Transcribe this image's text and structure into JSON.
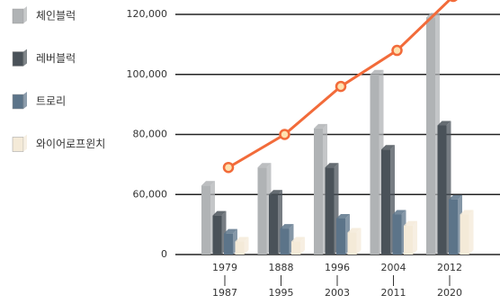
{
  "chart_data": {
    "type": "bar",
    "categories": [
      [
        "1979",
        "1987"
      ],
      [
        "1888",
        "1995"
      ],
      [
        "1996",
        "2003"
      ],
      [
        "2004",
        "2011"
      ],
      [
        "2012",
        "2020"
      ]
    ],
    "series": [
      {
        "name": "체인블럭",
        "color": "#b0b3b5",
        "values": [
          63000,
          69000,
          82000,
          100000,
          119000
        ]
      },
      {
        "name": "레버블럭",
        "color": "#4a5259",
        "values": [
          39000,
          60000,
          69000,
          75000,
          83000
        ]
      },
      {
        "name": "트로리",
        "color": "#5c7489",
        "values": [
          21000,
          26000,
          36000,
          40000,
          55000
        ]
      },
      {
        "name": "와이어로프윈치",
        "color": "#f4ead8",
        "values": [
          13000,
          13000,
          22000,
          29000,
          40000
        ]
      }
    ],
    "line": {
      "color": "#f26b3a",
      "values": [
        69000,
        80000,
        96000,
        108000,
        126000
      ]
    },
    "ylim": [
      0,
      125000
    ],
    "yticks": [
      0,
      {
        "value": 60000,
        "label": "60,000"
      },
      {
        "value": 80000,
        "label": "80,000"
      },
      {
        "value": 100000,
        "label": "100,000"
      },
      {
        "value": 120000,
        "label": "120,000"
      }
    ],
    "scale": "broken",
    "grid": true
  }
}
